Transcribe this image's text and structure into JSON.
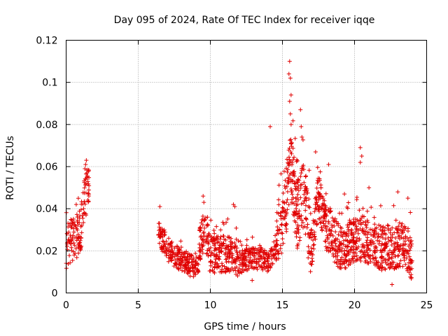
{
  "chart_data": {
    "type": "scatter",
    "title": "Day 095 of 2024, Rate Of TEC Index for receiver iqqe",
    "xlabel": "GPS time / hours",
    "ylabel": "ROTI / TECUs",
    "xlim": [
      0,
      25
    ],
    "ylim": [
      0,
      0.12
    ],
    "xticks": [
      0,
      5,
      10,
      15,
      20,
      25
    ],
    "yticks": [
      0,
      0.02,
      0.04,
      0.06,
      0.08,
      0.1,
      0.12
    ],
    "grid": true,
    "marker": "+",
    "color": "#e00000",
    "segments": [
      {
        "start": 0.0,
        "end": 1.6,
        "profile": [
          [
            0.0,
            0.02
          ],
          [
            0.5,
            0.025
          ],
          [
            1.0,
            0.028
          ],
          [
            1.3,
            0.045
          ],
          [
            1.6,
            0.05
          ]
        ],
        "spread": 0.012,
        "count": 140
      },
      {
        "start": 6.4,
        "end": 9.2,
        "profile": [
          [
            6.4,
            0.028
          ],
          [
            7.0,
            0.02
          ],
          [
            8.0,
            0.015
          ],
          [
            9.0,
            0.012
          ]
        ],
        "spread": 0.006,
        "count": 230
      },
      {
        "start": 9.2,
        "end": 12.0,
        "profile": [
          [
            9.2,
            0.02
          ],
          [
            9.6,
            0.03
          ],
          [
            10.0,
            0.017
          ],
          [
            11.0,
            0.018
          ],
          [
            12.0,
            0.015
          ]
        ],
        "spread": 0.01,
        "count": 260
      },
      {
        "start": 12.0,
        "end": 14.6,
        "profile": [
          [
            12.0,
            0.014
          ],
          [
            13.0,
            0.016
          ],
          [
            14.0,
            0.015
          ],
          [
            14.6,
            0.02
          ]
        ],
        "spread": 0.006,
        "count": 200
      },
      {
        "start": 14.6,
        "end": 17.0,
        "profile": [
          [
            14.6,
            0.025
          ],
          [
            15.2,
            0.04
          ],
          [
            15.6,
            0.06
          ],
          [
            16.0,
            0.035
          ],
          [
            16.5,
            0.045
          ],
          [
            17.0,
            0.02
          ]
        ],
        "spread": 0.018,
        "count": 260
      },
      {
        "start": 17.0,
        "end": 24.0,
        "profile": [
          [
            17.0,
            0.02
          ],
          [
            17.5,
            0.045
          ],
          [
            18.0,
            0.03
          ],
          [
            19.0,
            0.02
          ],
          [
            20.5,
            0.025
          ],
          [
            22.0,
            0.02
          ],
          [
            23.5,
            0.022
          ],
          [
            24.0,
            0.015
          ]
        ],
        "spread": 0.012,
        "count": 700
      }
    ],
    "highlights": [
      [
        15.5,
        0.11
      ],
      [
        15.45,
        0.104
      ],
      [
        15.55,
        0.102
      ],
      [
        15.6,
        0.094
      ],
      [
        15.5,
        0.091
      ],
      [
        15.55,
        0.085
      ],
      [
        15.6,
        0.08
      ],
      [
        16.25,
        0.087
      ],
      [
        16.3,
        0.079
      ],
      [
        16.35,
        0.074
      ],
      [
        14.15,
        0.079
      ],
      [
        17.3,
        0.067
      ],
      [
        20.4,
        0.069
      ],
      [
        20.5,
        0.065
      ],
      [
        20.4,
        0.062
      ],
      [
        18.2,
        0.061
      ],
      [
        16.4,
        0.06
      ],
      [
        1.4,
        0.063
      ],
      [
        1.35,
        0.061
      ],
      [
        1.3,
        0.059
      ],
      [
        1.45,
        0.057
      ],
      [
        0.7,
        0.042
      ],
      [
        9.5,
        0.046
      ],
      [
        9.55,
        0.043
      ],
      [
        11.6,
        0.042
      ],
      [
        11.7,
        0.041
      ],
      [
        19.3,
        0.047
      ],
      [
        23.0,
        0.048
      ],
      [
        23.7,
        0.045
      ],
      [
        21.0,
        0.05
      ],
      [
        6.5,
        0.041
      ],
      [
        8.6,
        0.008
      ],
      [
        12.9,
        0.006
      ],
      [
        22.6,
        0.004
      ]
    ]
  }
}
